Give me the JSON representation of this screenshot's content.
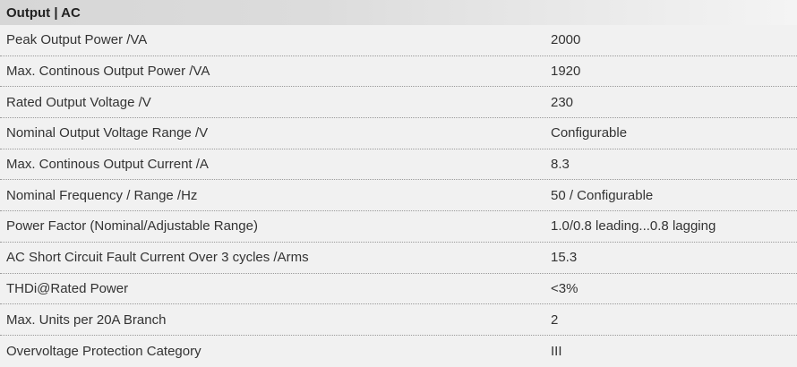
{
  "section": {
    "title": "Output | AC"
  },
  "rows": [
    {
      "label": "Peak Output Power /VA",
      "value": "2000"
    },
    {
      "label": "Max. Continous Output Power /VA",
      "value": "1920"
    },
    {
      "label": "Rated Output Voltage /V",
      "value": "230"
    },
    {
      "label": "Nominal Output Voltage Range /V",
      "value": "Configurable"
    },
    {
      "label": "Max. Continous Output Current /A",
      "value": "8.3"
    },
    {
      "label": "Nominal Frequency / Range /Hz",
      "value": "50 / Configurable"
    },
    {
      "label": "Power Factor (Nominal/Adjustable Range)",
      "value": "1.0/0.8 leading...0.8 lagging"
    },
    {
      "label": "AC Short Circuit Fault Current Over 3 cycles /Arms",
      "value": "15.3"
    },
    {
      "label": "THDi@Rated Power",
      "value": "<3%"
    },
    {
      "label": "Max. Units per 20A Branch",
      "value": "2"
    },
    {
      "label": "Overvoltage Protection Category",
      "value": "III"
    }
  ]
}
